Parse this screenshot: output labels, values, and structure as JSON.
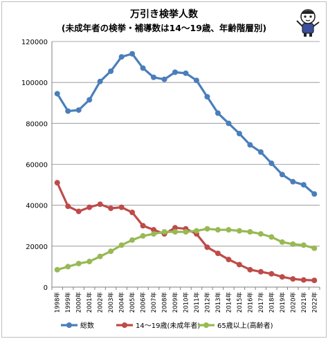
{
  "chart_data": {
    "type": "line",
    "title": "万引き検挙人数",
    "subtitle": "(未成年者の検挙・補導数は14～19歳、年齢階層別)",
    "xlabel": "",
    "ylabel": "",
    "categories": [
      "1998年",
      "1999年",
      "2000年",
      "2001年",
      "2002年",
      "2003年",
      "2004年",
      "2005年",
      "2006年",
      "2007年",
      "2008年",
      "2009年",
      "2010年",
      "2011年",
      "2012年",
      "2013年",
      "2014年",
      "2015年",
      "2016年",
      "2017年",
      "2018年",
      "2019年",
      "2020年",
      "2021年",
      "2022年"
    ],
    "ylim": [
      0,
      120000
    ],
    "yticks": [
      0,
      20000,
      40000,
      60000,
      80000,
      100000,
      120000
    ],
    "ytick_labels": [
      "0",
      "20000",
      "40000",
      "60000",
      "80000",
      "100000",
      "120000"
    ],
    "grid": true,
    "legend_position": "bottom",
    "series": [
      {
        "name": "総数",
        "color": "#4a7ebb",
        "values": [
          94500,
          86000,
          86500,
          91500,
          100500,
          105500,
          112500,
          114000,
          107000,
          102500,
          101500,
          105000,
          104500,
          101000,
          93000,
          85000,
          80000,
          75000,
          69500,
          66000,
          60500,
          55000,
          51500,
          50000,
          45500
        ]
      },
      {
        "name": "14～19歳(未成年者)",
        "color": "#be4b48",
        "values": [
          51000,
          39500,
          37000,
          39000,
          40500,
          38500,
          39000,
          36500,
          30000,
          28000,
          26000,
          29000,
          28500,
          26000,
          19500,
          16500,
          13500,
          11000,
          8500,
          7500,
          6500,
          5000,
          4000,
          3500,
          3300
        ]
      },
      {
        "name": "65歳以上(高齢者)",
        "color": "#98b954",
        "values": [
          8500,
          10000,
          11500,
          12500,
          15000,
          17500,
          20500,
          23000,
          25000,
          26000,
          27000,
          27000,
          27000,
          27500,
          28500,
          28000,
          28000,
          27500,
          27000,
          26000,
          24500,
          22000,
          21000,
          20500,
          19000
        ]
      }
    ]
  },
  "mascot_icon": "mascot-character-icon"
}
